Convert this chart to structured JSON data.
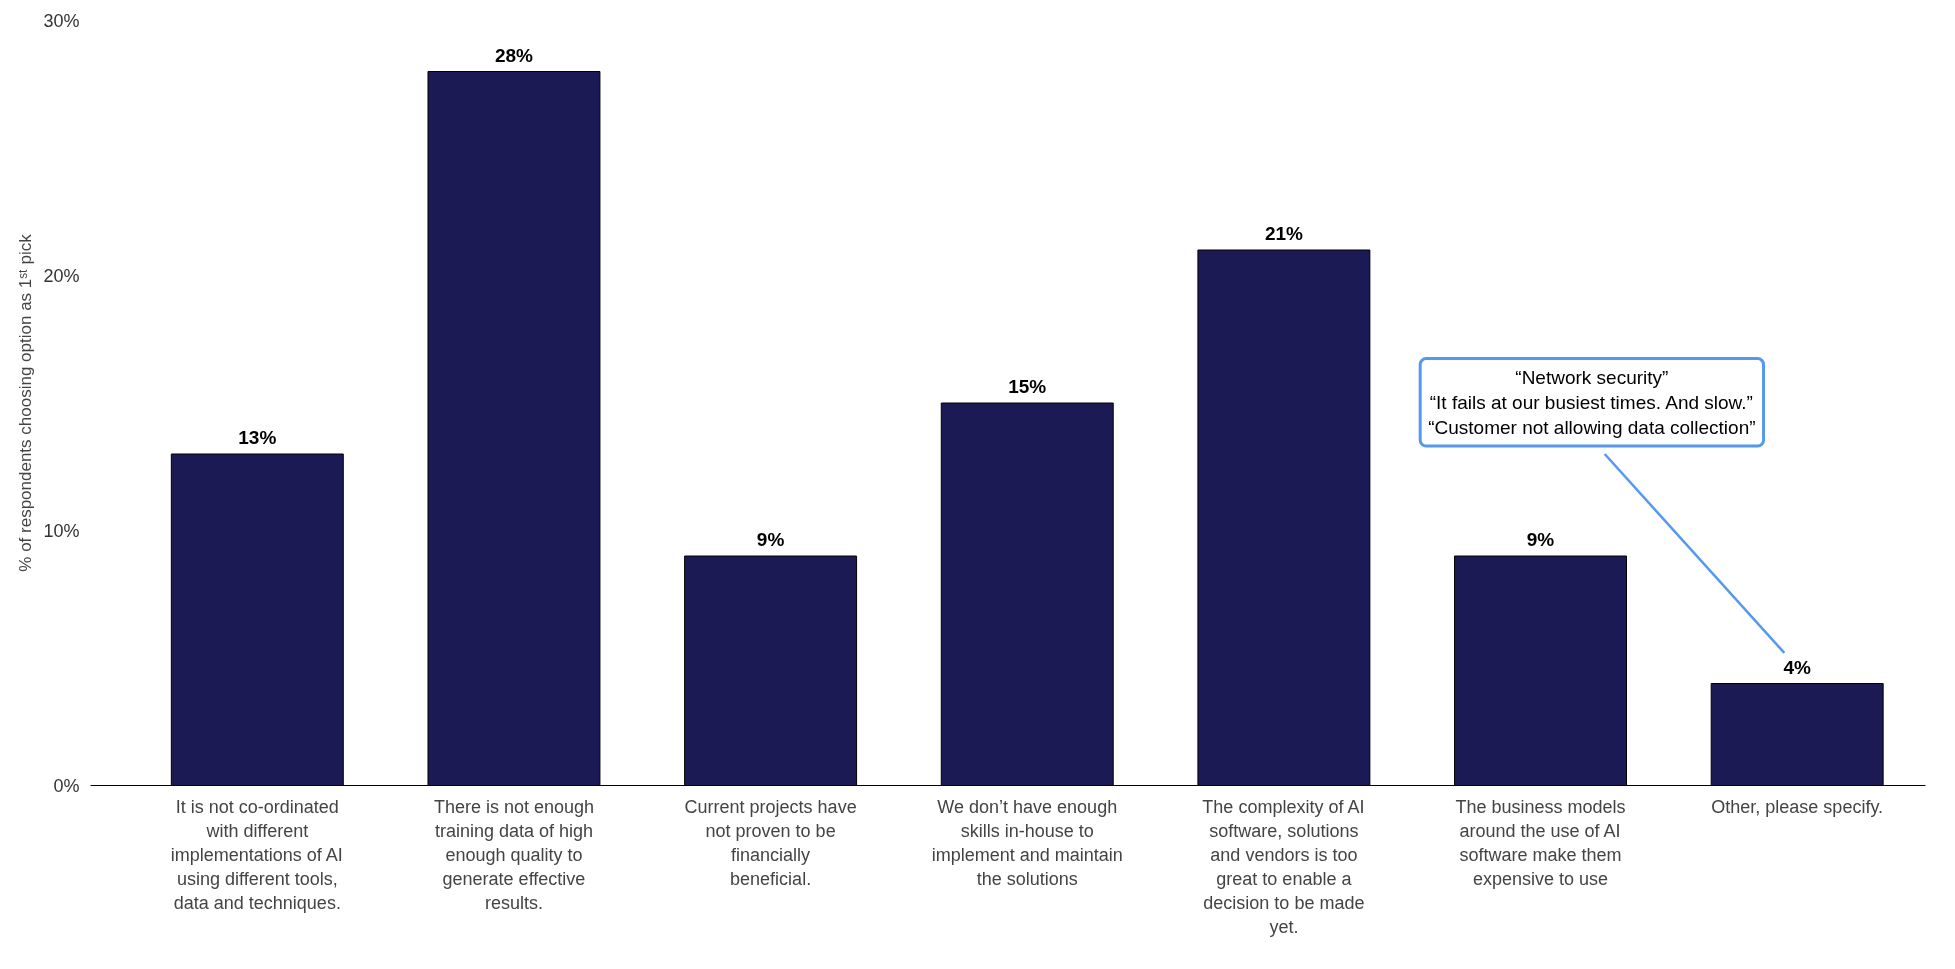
{
  "chart_data": {
    "type": "bar",
    "ylabel": "% of respondents choosing option as 1ˢᵗ pick",
    "categories": [
      "It is not co-ordinated with different implementations of AI using different tools, data and techniques.",
      "There is not enough training data of high enough quality to generate effective results.",
      "Current projects have not proven to be financially beneficial.",
      "We don’t have enough skills in-house to implement and maintain the solutions",
      "The complexity of AI software, solutions and vendors is too great to enable a decision to be made yet.",
      "The business models around the use of AI software make them expensive to use",
      "Other, please specify."
    ],
    "values": [
      13,
      28,
      9,
      15,
      21,
      9,
      4
    ],
    "value_labels": [
      "13%",
      "28%",
      "9%",
      "15%",
      "21%",
      "9%",
      "4%"
    ],
    "color": "#1c1a55",
    "ylim": [
      0,
      30
    ],
    "yticks": [
      {
        "value": 0,
        "label": "0%"
      },
      {
        "value": 10,
        "label": "10%"
      },
      {
        "value": 20,
        "label": "20%"
      },
      {
        "value": 30,
        "label": "30%"
      }
    ],
    "grid": false,
    "annotations": [
      "“Network security”\n“It fails at our busiest times. And slow.”\n“Customer not allowing data collection”"
    ]
  }
}
